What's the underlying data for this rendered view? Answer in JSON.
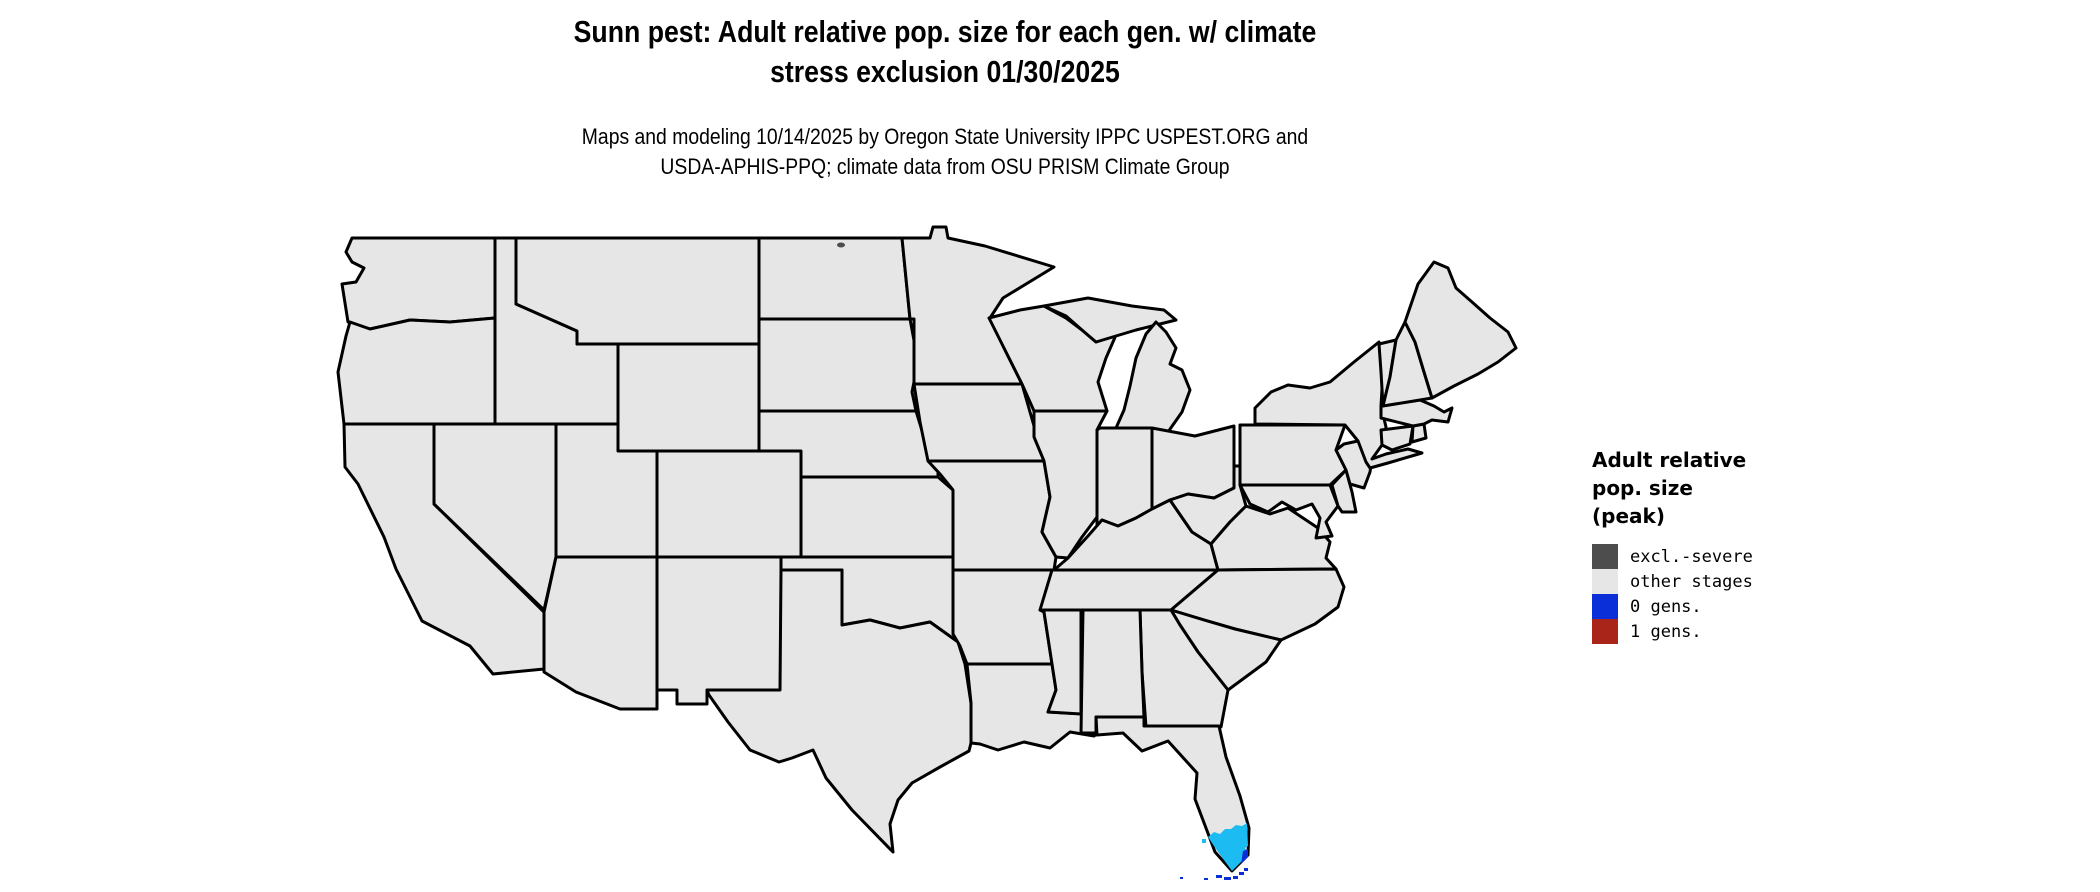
{
  "page": {
    "background": "#ffffff"
  },
  "title": {
    "line1": "Sunn pest: Adult relative pop. size for each gen. w/ climate",
    "line2": "stress exclusion 01/30/2025"
  },
  "subtitle": {
    "line1": "Maps and modeling 10/14/2025 by Oregon State University IPPC USPEST.ORG and",
    "line2": "USDA-APHIS-PPQ; climate data from OSU PRISM Climate Group"
  },
  "legend": {
    "title_lines": [
      "Adult relative",
      "pop. size",
      "(peak)"
    ],
    "items": [
      {
        "label": "excl.-severe",
        "color": "#4d4d4d"
      },
      {
        "label": "other stages",
        "color": "#e6e6e6"
      },
      {
        "label": "0 gens.",
        "color": "#0a2fd8"
      },
      {
        "label": "1 gens.",
        "color": "#a9251a"
      }
    ]
  },
  "map": {
    "colors": {
      "land": "#e6e6e6",
      "border": "#000000",
      "excl_severe": "#4d4d4d",
      "zero_gens_blue": "#0a2fd8",
      "adult_presence_cyan": "#1cbcf2"
    },
    "map_data": {
      "type": "choropleth",
      "region": "Continental United States (48 states)",
      "legend_classes": [
        "excl.-severe",
        "other stages",
        "0 gens.",
        "1 gens."
      ],
      "observations": [
        {
          "area": "Most of the continental U.S.",
          "class": "other stages",
          "color": "#e6e6e6"
        },
        {
          "area": "Southern tip of the Florida peninsula",
          "class": "adult population present (cyan shading)",
          "color": "#1cbcf2"
        },
        {
          "area": "Florida Keys and far-southeast Florida coast",
          "class": "0 gens.",
          "color": "#0a2fd8"
        },
        {
          "area": "Small spot in northern North Dakota",
          "class": "excl.-severe",
          "color": "#4d4d4d"
        }
      ]
    }
  }
}
